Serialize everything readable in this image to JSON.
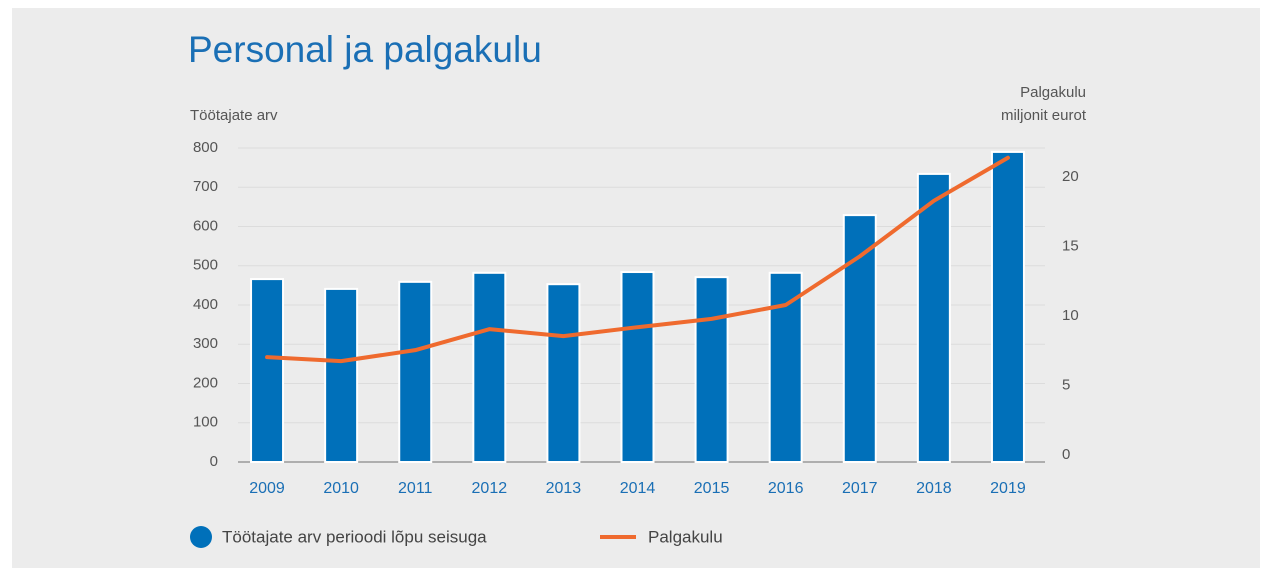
{
  "chart_data": {
    "type": "bar_line",
    "title": "Personal ja palgakulu",
    "y_label": "Töötajate arv",
    "y2_label": [
      "Palgakulu",
      "miljonit eurot"
    ],
    "categories": [
      "2009",
      "2010",
      "2011",
      "2012",
      "2013",
      "2014",
      "2015",
      "2016",
      "2017",
      "2018",
      "2019"
    ],
    "series": [
      {
        "name": "Töötajate arv perioodi lõpu seisuga",
        "color": "#0070ba",
        "type": "bar",
        "values": [
          466,
          441,
          459,
          482,
          453,
          484,
          471,
          482,
          629,
          734,
          790
        ]
      },
      {
        "name": "Palgakulu",
        "color": "#ef6a2e",
        "type": "line",
        "axis": "y2",
        "values": [
          7.05,
          6.76,
          7.55,
          9.06,
          8.56,
          9.2,
          9.8,
          10.8,
          14.3,
          18.3,
          21.4
        ]
      }
    ],
    "ylim": [
      0,
      800
    ],
    "yticks": [
      0,
      100,
      200,
      300,
      400,
      500,
      600,
      700,
      800
    ],
    "y2lim": [
      -0.5,
      22.1
    ],
    "y2ticks": [
      0,
      5,
      10,
      15,
      20
    ],
    "grid": true
  }
}
